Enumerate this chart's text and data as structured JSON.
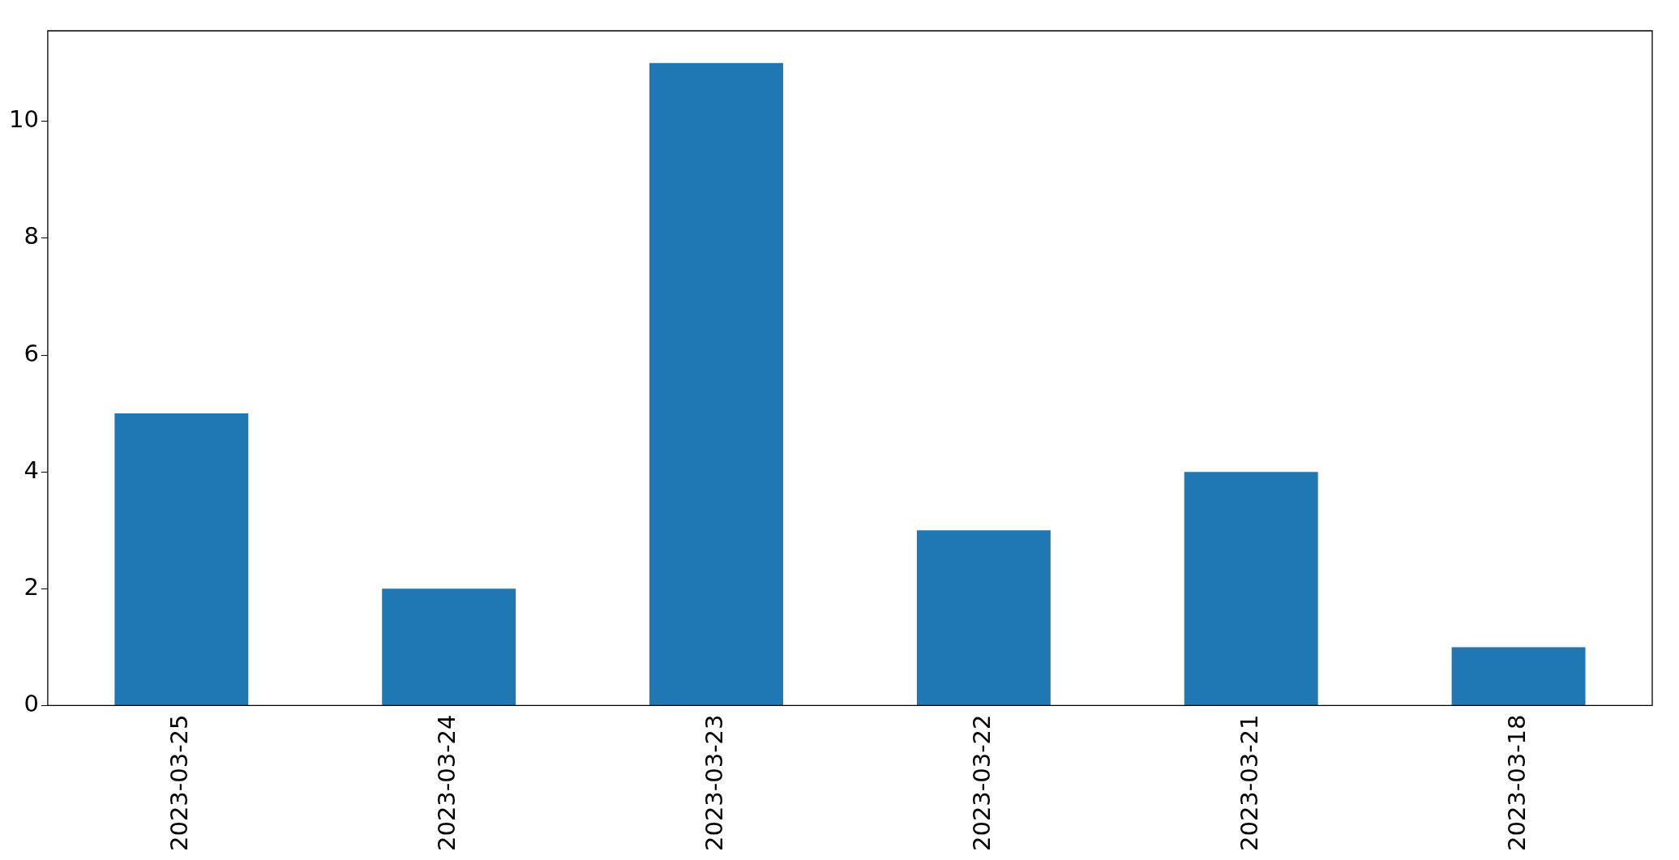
{
  "chart_data": {
    "type": "bar",
    "categories": [
      "2023-03-25",
      "2023-03-24",
      "2023-03-23",
      "2023-03-22",
      "2023-03-21",
      "2023-03-18"
    ],
    "values": [
      5,
      2,
      11,
      3,
      4,
      1
    ],
    "color": "#1f77b4",
    "ylim": [
      0,
      11.55
    ],
    "yticks": [
      0,
      2,
      4,
      6,
      8,
      10
    ],
    "grid": false,
    "legend": false
  }
}
